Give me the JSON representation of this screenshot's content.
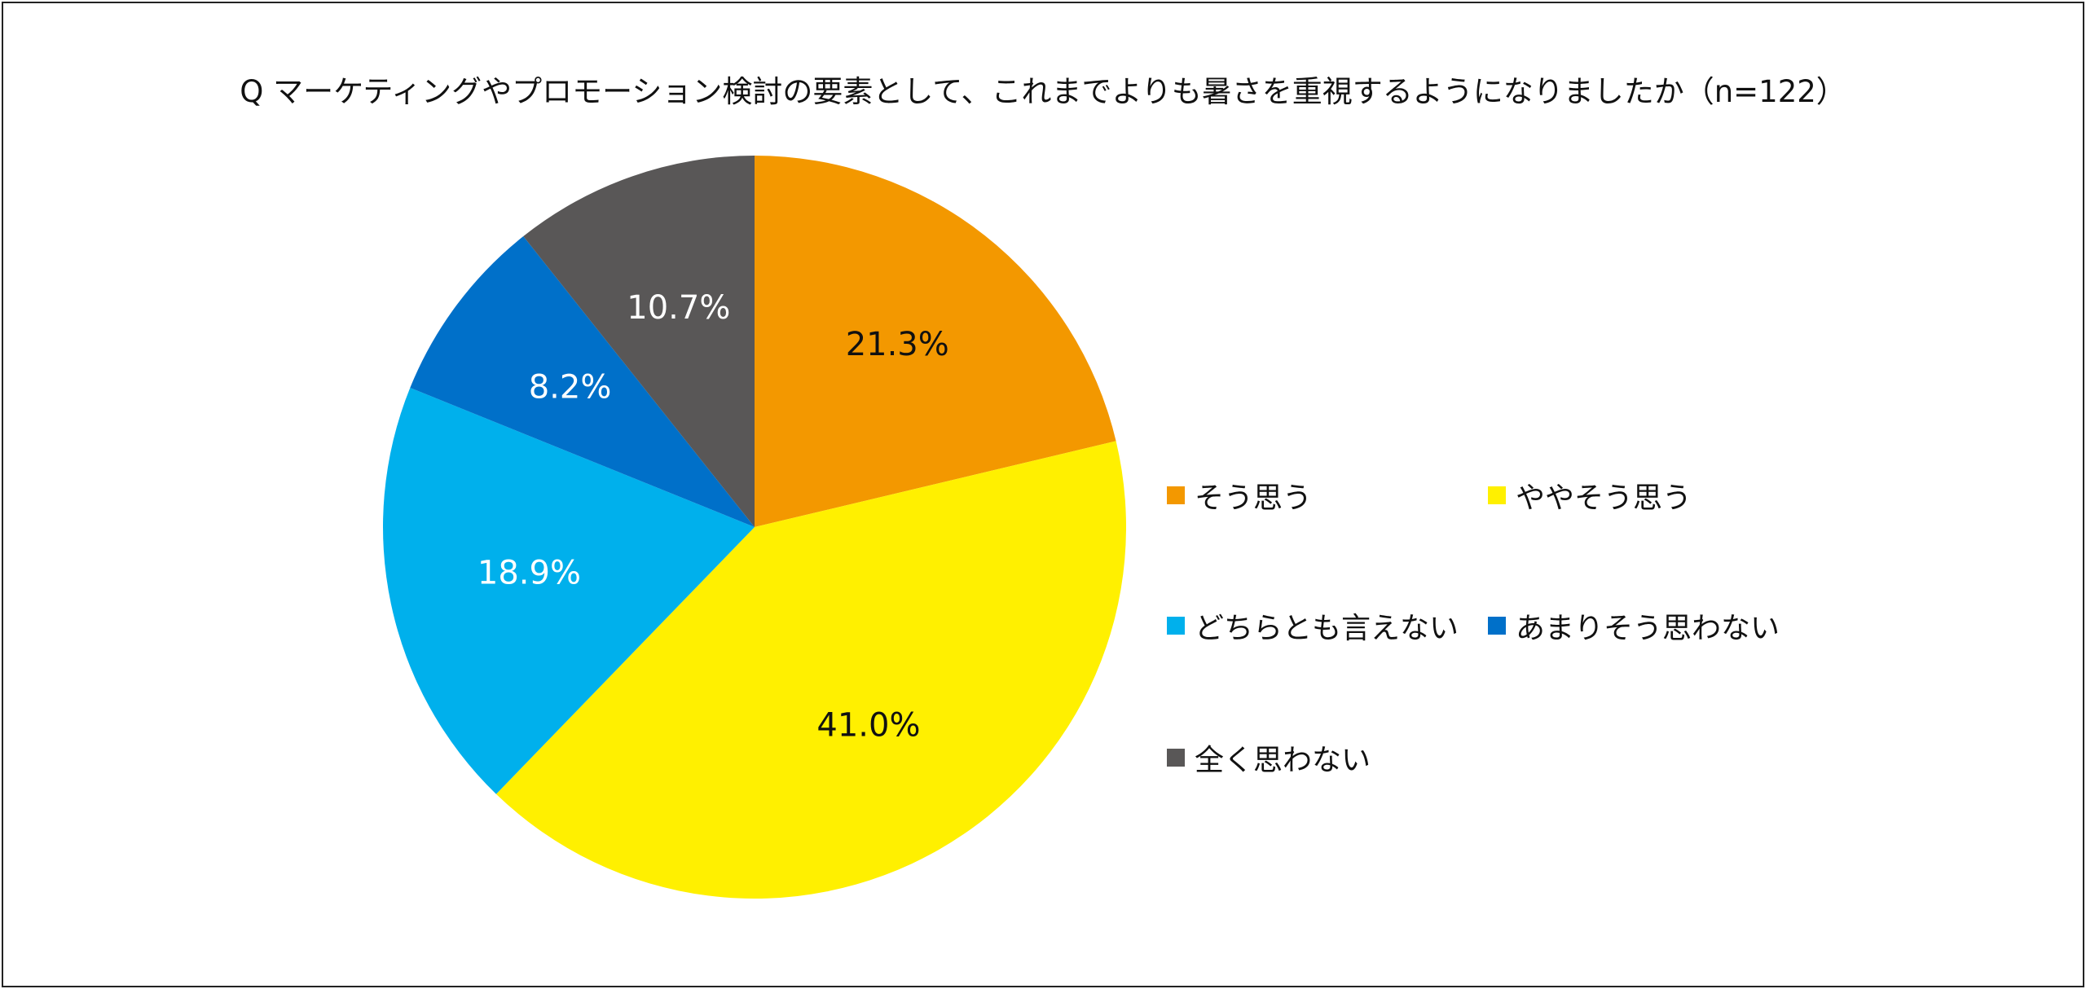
{
  "chart_data": {
    "type": "pie",
    "title": "Q マーケティングやプロモーション検討の要素として、これまでよりも暑さを重視するようになりましたか（n=122）",
    "start_angle_deg": 0,
    "direction": "clockwise",
    "legend_position": "right",
    "slices": [
      {
        "label": "そう思う",
        "value": 21.3,
        "display": "21.3%",
        "color": "#F39800",
        "text_color": "#111111"
      },
      {
        "label": "ややそう思う",
        "value": 41.0,
        "display": "41.0%",
        "color": "#FFF000",
        "text_color": "#111111"
      },
      {
        "label": "どちらとも言えない",
        "value": 18.9,
        "display": "18.9%",
        "color": "#00B0EC",
        "text_color": "#FFFFFF"
      },
      {
        "label": "あまりそう思わない",
        "value": 8.2,
        "display": "8.2%",
        "color": "#0070C9",
        "text_color": "#FFFFFF"
      },
      {
        "label": "全く思わない",
        "value": 10.7,
        "display": "10.7%",
        "color": "#595757",
        "text_color": "#FFFFFF"
      }
    ]
  }
}
